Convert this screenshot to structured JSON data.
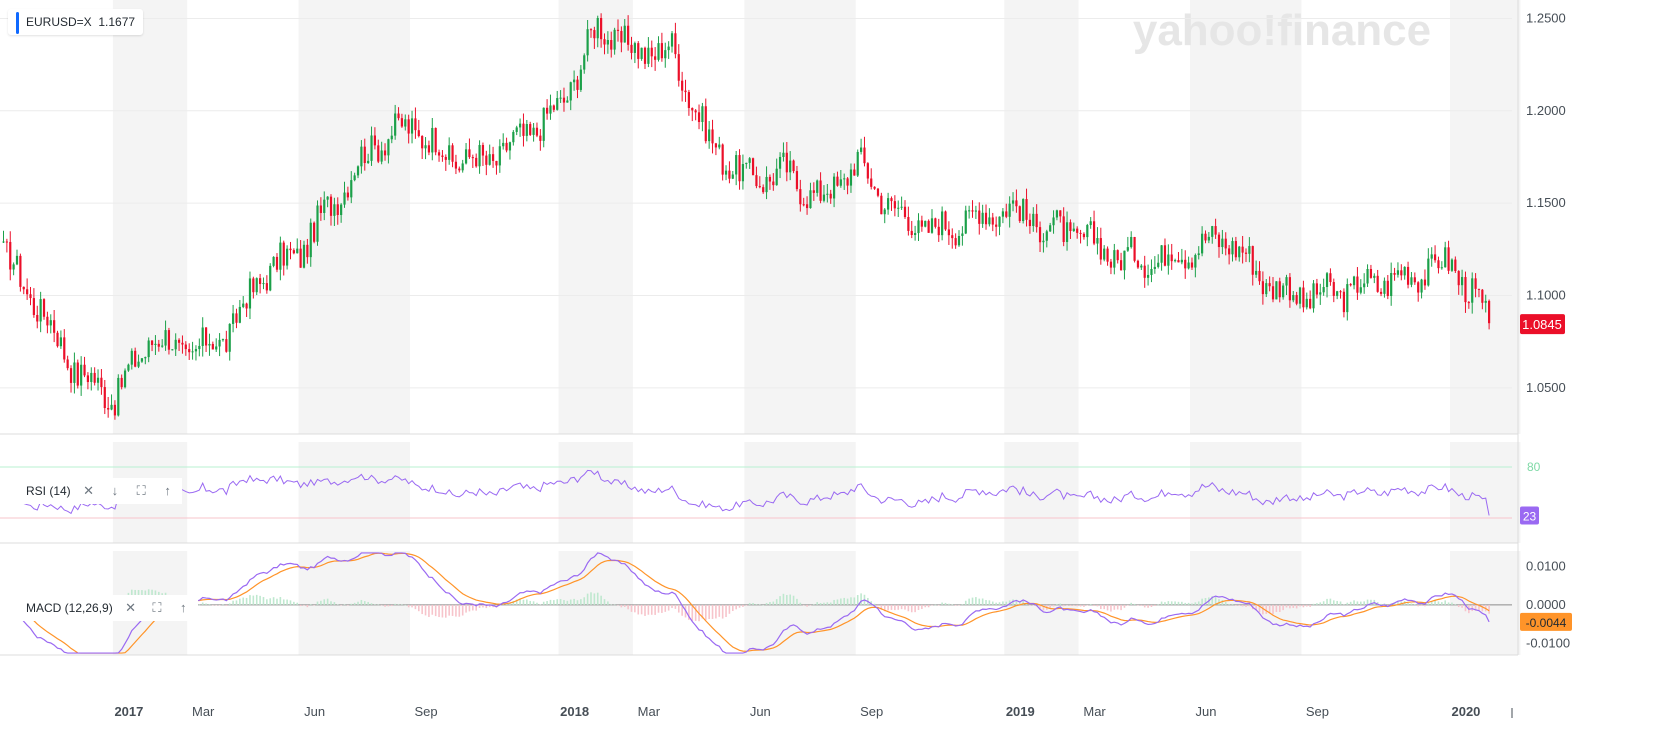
{
  "header": {
    "symbol": "EURUSD=X",
    "last_price": "1.1677",
    "accent_color": "#0f69ff",
    "watermark": "yahoo!finance"
  },
  "price_axis": {
    "ticks": [
      "1.2500",
      "1.2000",
      "1.1500",
      "1.1000",
      "1.0500"
    ],
    "tick_values": [
      1.25,
      1.2,
      1.15,
      1.1,
      1.05
    ],
    "current_label": "1.0845",
    "current_value": 1.0845,
    "current_color": "#eb0f29"
  },
  "x_axis": {
    "labels": [
      {
        "text": "2017",
        "bold": true,
        "date": "2017-01"
      },
      {
        "text": "Mar",
        "bold": false,
        "date": "2017-03"
      },
      {
        "text": "Jun",
        "bold": false,
        "date": "2017-06"
      },
      {
        "text": "Sep",
        "bold": false,
        "date": "2017-09"
      },
      {
        "text": "2018",
        "bold": true,
        "date": "2018-01"
      },
      {
        "text": "Mar",
        "bold": false,
        "date": "2018-03"
      },
      {
        "text": "Jun",
        "bold": false,
        "date": "2018-06"
      },
      {
        "text": "Sep",
        "bold": false,
        "date": "2018-09"
      },
      {
        "text": "2019",
        "bold": true,
        "date": "2019-01"
      },
      {
        "text": "Mar",
        "bold": false,
        "date": "2019-03"
      },
      {
        "text": "Jun",
        "bold": false,
        "date": "2019-06"
      },
      {
        "text": "Sep",
        "bold": false,
        "date": "2019-09"
      },
      {
        "text": "2020",
        "bold": true,
        "date": "2020-01"
      }
    ]
  },
  "rsi": {
    "label": "RSI (14)",
    "upper_tick": "80",
    "current_label": "23",
    "color": "#9a69f2"
  },
  "macd": {
    "label": "MACD (12,26,9)",
    "ticks": [
      "0.0100",
      "0.0000",
      "-0.0100"
    ],
    "tick_values": [
      0.01,
      0.0,
      -0.01
    ],
    "current_label": "-0.0044",
    "macd_color": "#9a69f2",
    "signal_color": "#ff9429"
  },
  "colors": {
    "up": "#1ba049",
    "down": "#eb0f29",
    "band": "#f4f4f4",
    "grid": "#ececec"
  },
  "chart_data": {
    "type": "candlestick",
    "title": "EURUSD=X",
    "ylim": [
      1.025,
      1.26
    ],
    "grid": true,
    "x": [
      "2016-10",
      "2016-11",
      "2016-12",
      "2017-01",
      "2017-02",
      "2017-03",
      "2017-04",
      "2017-05",
      "2017-06",
      "2017-07",
      "2017-08",
      "2017-09",
      "2017-10",
      "2017-11",
      "2017-12",
      "2018-01",
      "2018-02",
      "2018-03",
      "2018-04",
      "2018-05",
      "2018-06",
      "2018-07",
      "2018-08",
      "2018-09",
      "2018-10",
      "2018-11",
      "2018-12",
      "2019-01",
      "2019-02",
      "2019-03",
      "2019-04",
      "2019-05",
      "2019-06",
      "2019-07",
      "2019-08",
      "2019-09",
      "2019-10",
      "2019-11",
      "2019-12",
      "2020-01",
      "2020-02"
    ],
    "series": [
      {
        "name": "EURUSD=X",
        "values": [
          1.123,
          1.092,
          1.058,
          1.045,
          1.078,
          1.068,
          1.078,
          1.112,
          1.124,
          1.155,
          1.183,
          1.192,
          1.175,
          1.172,
          1.186,
          1.202,
          1.246,
          1.232,
          1.233,
          1.183,
          1.163,
          1.167,
          1.152,
          1.172,
          1.145,
          1.135,
          1.141,
          1.148,
          1.138,
          1.132,
          1.121,
          1.119,
          1.126,
          1.131,
          1.107,
          1.099,
          1.102,
          1.107,
          1.112,
          1.118,
          1.085
        ]
      }
    ],
    "rsi": {
      "ylim": [
        0,
        100
      ],
      "upper": 80,
      "lower": 20,
      "last": 23
    },
    "macd": {
      "ylim": [
        -0.013,
        0.014
      ],
      "last": -0.0044
    }
  }
}
